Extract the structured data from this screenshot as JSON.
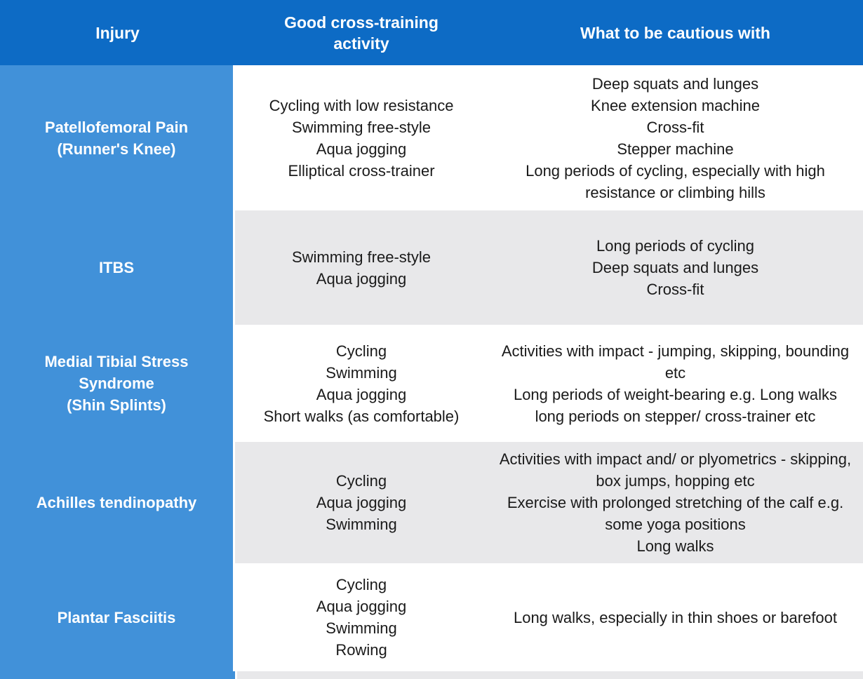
{
  "table": {
    "headers": [
      {
        "label": "Injury"
      },
      {
        "label": "Good cross-training activity"
      },
      {
        "label": "What to be cautious with"
      }
    ],
    "rows": [
      {
        "injury": [
          "Patellofemoral Pain",
          "(Runner's Knee)"
        ],
        "activities": [
          "Cycling with low resistance",
          "Swimming free-style",
          "Aqua jogging",
          "Elliptical cross-trainer"
        ],
        "cautions": [
          "Deep squats and lunges",
          "Knee extension machine",
          "Cross-fit",
          "Stepper machine",
          "Long periods of cycling, especially with high resistance or climbing hills"
        ],
        "shaded": false
      },
      {
        "injury": [
          "ITBS"
        ],
        "activities": [
          "Swimming free-style",
          "Aqua jogging"
        ],
        "cautions": [
          "Long periods of cycling",
          "Deep squats and lunges",
          "Cross-fit"
        ],
        "shaded": true
      },
      {
        "injury": [
          "Medial Tibial Stress Syndrome",
          "(Shin Splints)"
        ],
        "activities": [
          "Cycling",
          "Swimming",
          "Aqua jogging",
          "Short walks (as comfortable)"
        ],
        "cautions": [
          "Activities with impact - jumping, skipping, bounding etc",
          "Long periods of weight-bearing e.g. Long walks long periods on stepper/ cross-trainer etc"
        ],
        "shaded": false
      },
      {
        "injury": [
          "Achilles tendinopathy"
        ],
        "activities": [
          "Cycling",
          "Aqua jogging",
          "Swimming"
        ],
        "cautions": [
          "Activities with impact and/ or plyometrics - skipping, box jumps, hopping etc",
          "Exercise with prolonged stretching of the calf e.g. some yoga positions",
          "Long walks"
        ],
        "shaded": true
      },
      {
        "injury": [
          "Plantar Fasciitis"
        ],
        "activities": [
          "Cycling",
          "Aqua jogging",
          "Swimming",
          "Rowing"
        ],
        "cautions": [
          "Long walks, especially in thin shoes or barefoot"
        ],
        "shaded": false
      }
    ],
    "colors": {
      "header_bg": "#0d6bc5",
      "injury_column_bg": "#4191d9",
      "shaded_row_bg": "#e8e8ea",
      "header_text": "#ffffff",
      "body_text": "#1a1a1a"
    }
  }
}
